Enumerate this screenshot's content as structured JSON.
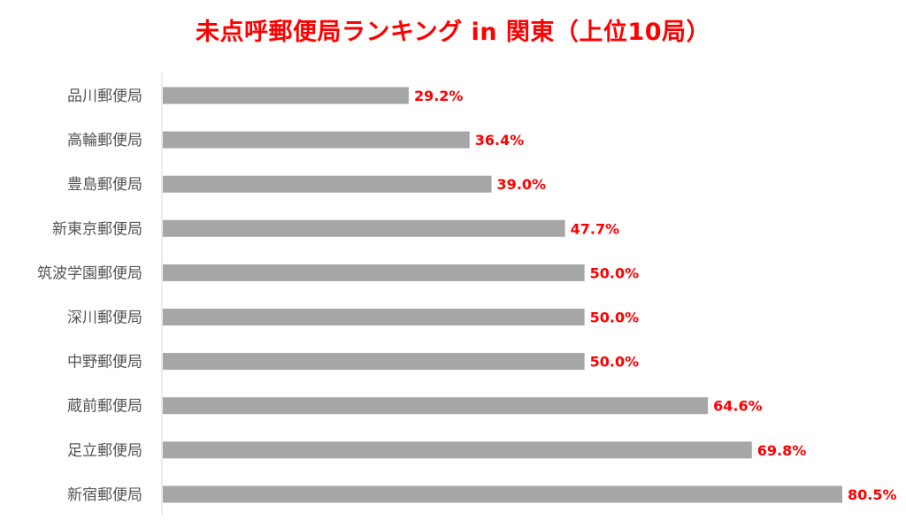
{
  "chart_data": {
    "type": "bar",
    "orientation": "horizontal",
    "title": "未点呼郵便局ランキング in 関東（上位10局）",
    "xlabel": "",
    "ylabel": "",
    "xlim": [
      0,
      81
    ],
    "grid": false,
    "legend": "none",
    "bar_color": "#a6a6a6",
    "label_color": "#ff0000",
    "title_color": "#ff0000",
    "categories": [
      "品川郵便局",
      "高輪郵便局",
      "豊島郵便局",
      "新東京郵便局",
      "筑波学園郵便局",
      "深川郵便局",
      "中野郵便局",
      "蔵前郵便局",
      "足立郵便局",
      "新宿郵便局"
    ],
    "values": [
      29.2,
      36.4,
      39.0,
      47.7,
      50.0,
      50.0,
      50.0,
      64.6,
      69.8,
      80.5
    ],
    "value_labels": [
      "29.2%",
      "36.4%",
      "39.0%",
      "47.7%",
      "50.0%",
      "50.0%",
      "50.0%",
      "64.6%",
      "69.8%",
      "80.5%"
    ]
  }
}
